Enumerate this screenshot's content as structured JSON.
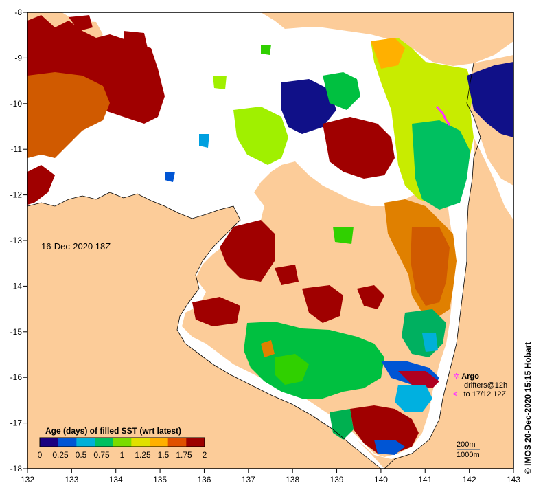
{
  "map": {
    "date_label": "16-Dec-2020 18Z",
    "credit": "© IMOS 20-Dec-2020 15:15 Hobart",
    "x_axis": {
      "ticks": [
        "132",
        "133",
        "134",
        "135",
        "136",
        "137",
        "138",
        "139",
        "140",
        "141",
        "142",
        "143"
      ],
      "range": [
        132,
        143
      ]
    },
    "y_axis": {
      "ticks": [
        "-8",
        "-9",
        "-10",
        "-11",
        "-12",
        "-13",
        "-14",
        "-15",
        "-16",
        "-17",
        "-18"
      ],
      "range": [
        -8,
        -18
      ]
    },
    "colorbar": {
      "title": "Age (days) of filled SST (wrt latest)",
      "ticks": [
        "0",
        "0.25",
        "0.5",
        "0.75",
        "1",
        "1.25",
        "1.5",
        "1.75",
        "2"
      ],
      "colors": [
        "#1a0080",
        "#0055d4",
        "#00b0d8",
        "#00c060",
        "#7adc00",
        "#e0e000",
        "#ffb000",
        "#e05000",
        "#9c0000"
      ]
    },
    "legend": {
      "argo_label": "Argo",
      "drifters_label": "drifters@12h",
      "drifters_until": "to 17/12 12Z",
      "argo_symbol": "✲",
      "drifter_symbol": "<",
      "argo_color": "#ff33ff"
    },
    "depth_legend": {
      "contour_1": "200m",
      "contour_2": "1000m"
    },
    "colors": {
      "land": "#fccc99",
      "ocean": "#ffffff",
      "frame": "#000000"
    }
  }
}
